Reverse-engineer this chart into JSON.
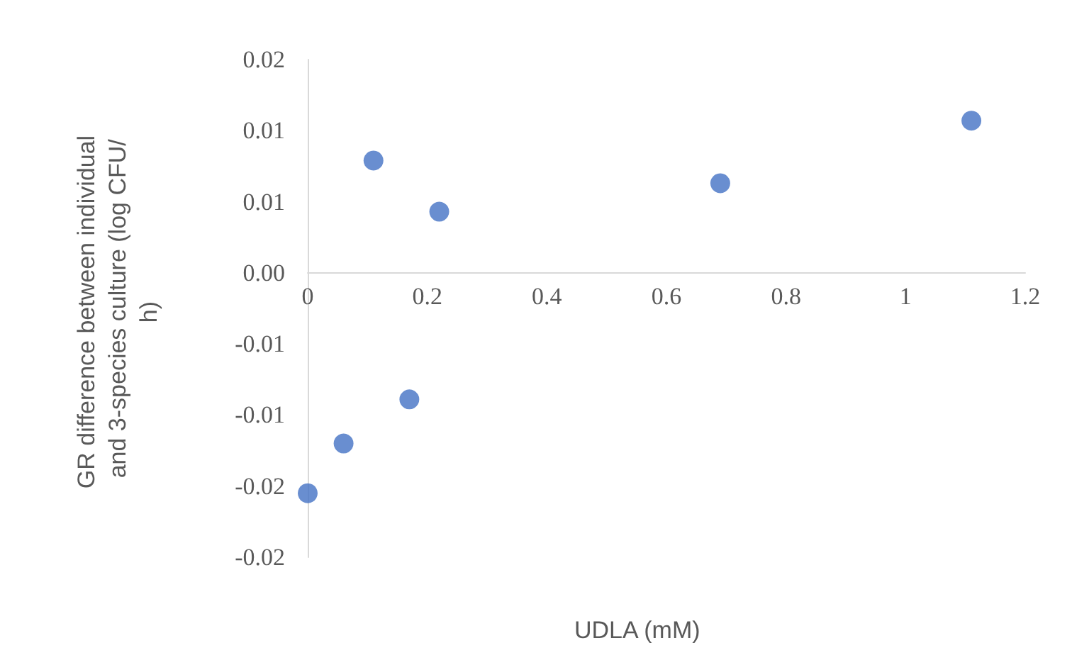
{
  "chart_data": {
    "type": "scatter",
    "xlabel": "UDLA (mM)",
    "ylabel": "GR difference between individual and 3-species culture (log CFU/h)",
    "x": [
      0,
      0.06,
      0.11,
      0.17,
      0.22,
      0.69,
      1.11
    ],
    "series": [
      {
        "color": "#4472c4",
        "values": [
          -0.0155,
          -0.012,
          0.0079,
          -0.0089,
          0.0043,
          0.0063,
          0.0107
        ]
      }
    ],
    "xlim": [
      0,
      1.2
    ],
    "xticks": [
      0,
      0.2,
      0.4,
      0.6,
      0.8,
      1,
      1.2
    ],
    "ylim": [
      -0.02,
      0.015
    ],
    "yticks": [
      {
        "value": -0.02,
        "label": "-0.02"
      },
      {
        "value": -0.015,
        "label": "-0.02"
      },
      {
        "value": -0.01,
        "label": "-0.01"
      },
      {
        "value": -0.005,
        "label": "-0.01"
      },
      {
        "value": 0,
        "label": "0.00"
      },
      {
        "value": 0.005,
        "label": "0.01"
      },
      {
        "value": 0.01,
        "label": "0.01"
      },
      {
        "value": 0.015,
        "label": "0.02"
      }
    ],
    "grid": false,
    "marker": "circle"
  }
}
